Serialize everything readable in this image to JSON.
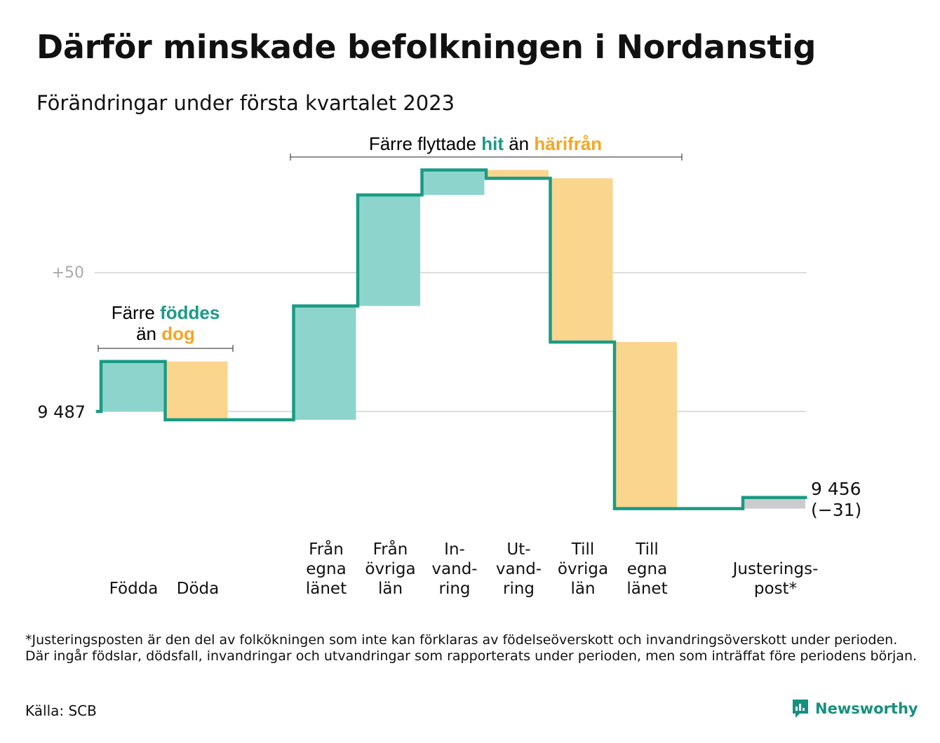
{
  "title": "Därför minskade befolkningen i Nordanstig",
  "subtitle": "Förändringar under första kvartalet 2023",
  "chart_data": {
    "type": "waterfall",
    "start_value": 9487,
    "start_label": "9 487",
    "end_value": 9456,
    "end_label": "9 456",
    "end_change_label": "(−31)",
    "y_tick_label": "+50",
    "y_tick_value": 9537,
    "categories": [
      {
        "label": [
          "Födda"
        ],
        "delta": 18,
        "kind": "increase"
      },
      {
        "label": [
          "Döda"
        ],
        "delta": -21,
        "kind": "decrease"
      },
      {
        "label": [],
        "delta": 0,
        "kind": "none"
      },
      {
        "label": [
          "Från",
          "egna",
          "länet"
        ],
        "delta": 41,
        "kind": "increase"
      },
      {
        "label": [
          "Från",
          "övriga",
          "län"
        ],
        "delta": 40,
        "kind": "increase"
      },
      {
        "label": [
          "In-",
          "vand-",
          "ring"
        ],
        "delta": 9,
        "kind": "increase"
      },
      {
        "label": [
          "Ut-",
          "vand-",
          "ring"
        ],
        "delta": -3,
        "kind": "decrease"
      },
      {
        "label": [
          "Till",
          "övriga",
          "län"
        ],
        "delta": -59,
        "kind": "decrease"
      },
      {
        "label": [
          "Till",
          "egna",
          "länet"
        ],
        "delta": -60,
        "kind": "decrease"
      },
      {
        "label": [],
        "delta": 0,
        "kind": "none"
      },
      {
        "label": [
          "Justerings-",
          "post*"
        ],
        "delta": 4,
        "kind": "adjustment"
      }
    ],
    "annotations": {
      "births_deaths": {
        "line1": "Färre",
        "line1_highlight": "föddes",
        "line2": "än",
        "line2_highlight": "dog"
      },
      "migration": {
        "prefix": "Färre flyttade",
        "highlight1": "hit",
        "middle": "än",
        "highlight2": "härifrån"
      }
    },
    "colors": {
      "increase": "#8dd5cc",
      "decrease": "#fad58e",
      "adjustment": "#cccccc",
      "line": "#1a9a86",
      "grid": "#dddddd"
    }
  },
  "footnote": "*Justeringsposten är den del av folkökningen som inte kan förklaras av födelseöverskott och invandringsöverskott under perioden. Där ingår födslar, dödsfall, invandringar och utvandringar som rapporterats under perioden, men som inträffat före periodens början.",
  "source": "Källa: SCB",
  "brand": "Newsworthy"
}
